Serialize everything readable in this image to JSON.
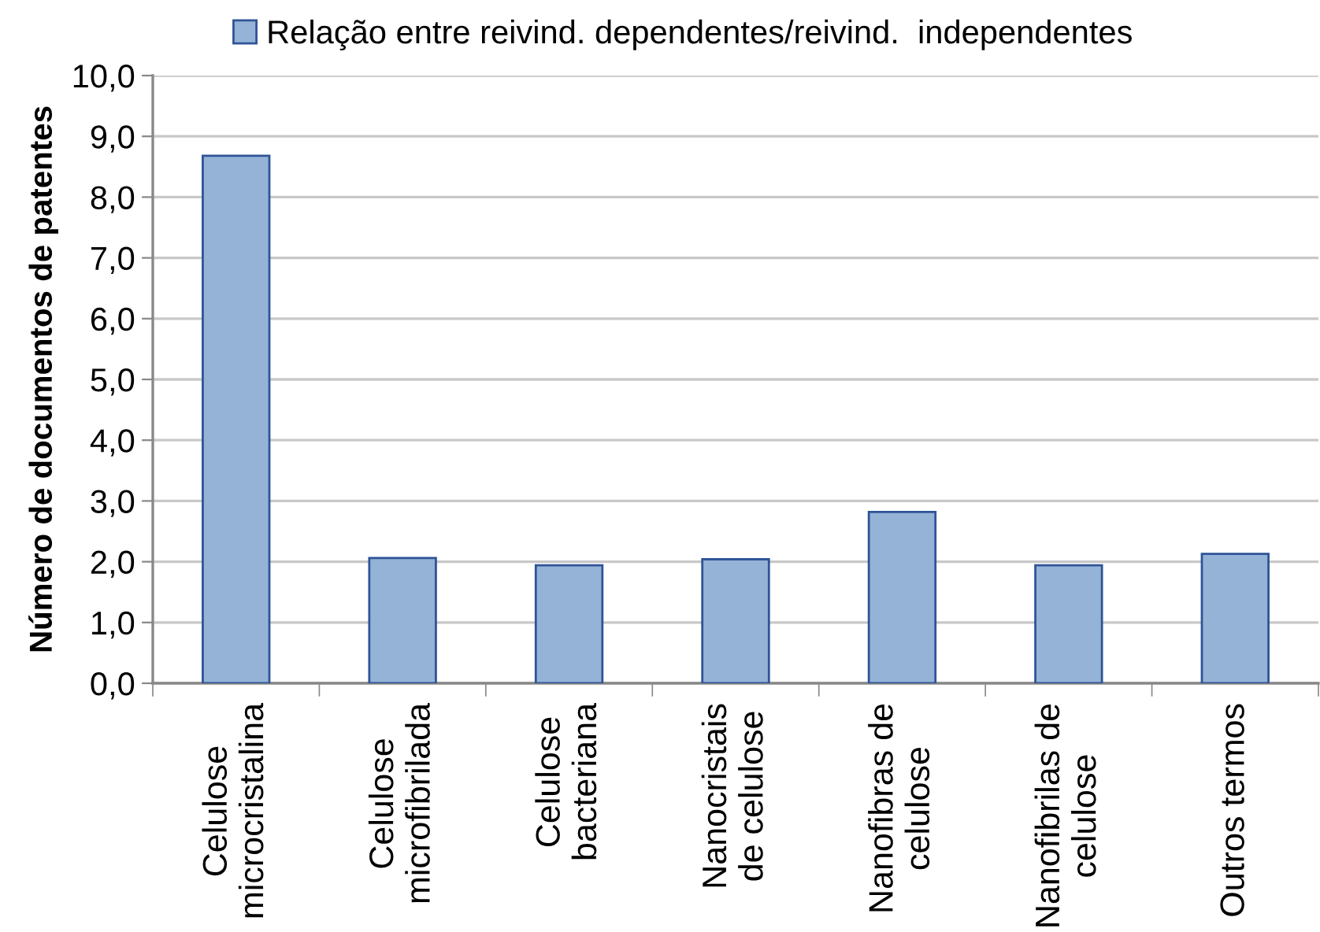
{
  "chart_data": {
    "type": "bar",
    "categories": [
      "Celulose\nmicrocristalina",
      "Celulose\nmicrofibrilada",
      "Celulose\nbacteriana",
      "Nanocristais\nde celulose",
      "Nanofibras de\ncelulose",
      "Nanofibrilas de\ncelulose",
      "Outros termos"
    ],
    "series": [
      {
        "name": "Relação entre reivind. dependentes/reivind.  independentes",
        "color": "#95b3d7",
        "values": [
          8.68,
          2.06,
          1.94,
          2.04,
          2.82,
          1.94,
          2.13
        ]
      }
    ],
    "ylabel": "Número de documentos de patentes",
    "ylim": [
      0,
      10
    ],
    "yticks": [
      {
        "value": 0,
        "label": "0,0"
      },
      {
        "value": 1,
        "label": "1,0"
      },
      {
        "value": 2,
        "label": "2,0"
      },
      {
        "value": 3,
        "label": "3,0"
      },
      {
        "value": 4,
        "label": "4,0"
      },
      {
        "value": 5,
        "label": "5,0"
      },
      {
        "value": 6,
        "label": "6,0"
      },
      {
        "value": 7,
        "label": "7,0"
      },
      {
        "value": 8,
        "label": "8,0"
      },
      {
        "value": 9,
        "label": "9,0"
      },
      {
        "value": 10,
        "label": "10,0"
      }
    ],
    "grid": "y",
    "legend": "top"
  }
}
